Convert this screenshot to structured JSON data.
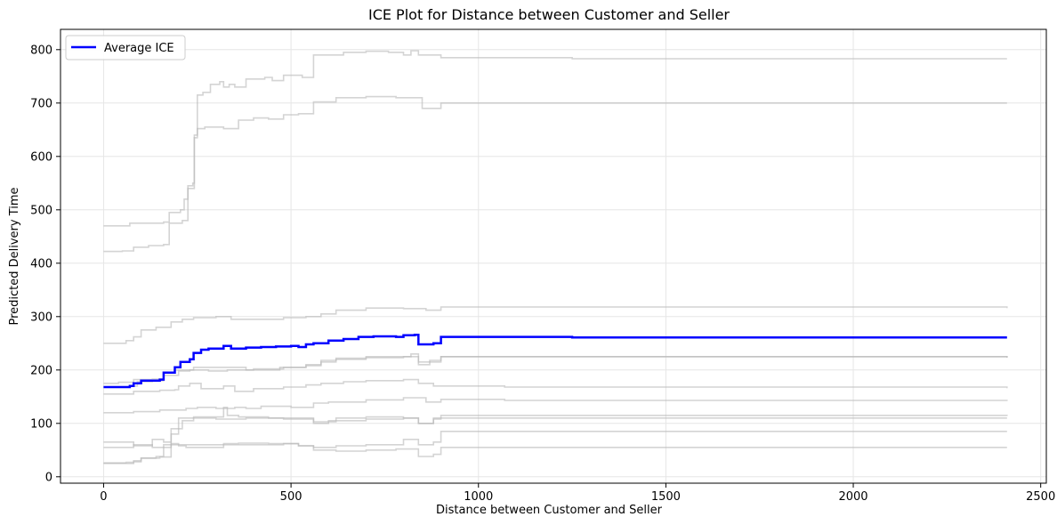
{
  "chart_data": {
    "type": "line",
    "title": "ICE Plot for Distance between Customer and Seller",
    "xlabel": "Distance between Customer and Seller",
    "ylabel": "Predicted Delivery Time",
    "xlim": [
      -115,
      2515
    ],
    "ylim": [
      -12,
      838
    ],
    "xticks": [
      0,
      500,
      1000,
      1500,
      2000,
      2500
    ],
    "yticks": [
      0,
      100,
      200,
      300,
      400,
      500,
      600,
      700,
      800
    ],
    "grid": true,
    "legend": {
      "placement": "top-left",
      "entries": [
        "Average ICE"
      ]
    },
    "colors": {
      "ice": "#b8b8b8",
      "average": "#0000ff"
    },
    "ice_lines": [
      {
        "points": [
          [
            0,
            470
          ],
          [
            40,
            470
          ],
          [
            70,
            475
          ],
          [
            160,
            477
          ],
          [
            175,
            495
          ],
          [
            205,
            500
          ],
          [
            215,
            520
          ],
          [
            225,
            545
          ],
          [
            238,
            550
          ],
          [
            242,
            635
          ],
          [
            250,
            715
          ],
          [
            265,
            720
          ],
          [
            285,
            735
          ],
          [
            310,
            740
          ],
          [
            320,
            730
          ],
          [
            335,
            735
          ],
          [
            350,
            730
          ],
          [
            380,
            745
          ],
          [
            430,
            748
          ],
          [
            450,
            742
          ],
          [
            480,
            752
          ],
          [
            530,
            748
          ],
          [
            560,
            790
          ],
          [
            610,
            790
          ],
          [
            640,
            795
          ],
          [
            700,
            797
          ],
          [
            760,
            795
          ],
          [
            800,
            790
          ],
          [
            820,
            798
          ],
          [
            840,
            790
          ],
          [
            900,
            785
          ],
          [
            1070,
            785
          ],
          [
            1250,
            783
          ],
          [
            2410,
            783
          ]
        ]
      },
      {
        "points": [
          [
            0,
            422
          ],
          [
            50,
            423
          ],
          [
            80,
            430
          ],
          [
            120,
            433
          ],
          [
            160,
            435
          ],
          [
            175,
            475
          ],
          [
            210,
            480
          ],
          [
            225,
            540
          ],
          [
            242,
            640
          ],
          [
            250,
            652
          ],
          [
            270,
            655
          ],
          [
            320,
            652
          ],
          [
            360,
            668
          ],
          [
            400,
            672
          ],
          [
            440,
            670
          ],
          [
            480,
            678
          ],
          [
            520,
            680
          ],
          [
            560,
            702
          ],
          [
            620,
            710
          ],
          [
            700,
            712
          ],
          [
            780,
            710
          ],
          [
            820,
            710
          ],
          [
            850,
            690
          ],
          [
            900,
            700
          ],
          [
            1070,
            700
          ],
          [
            2410,
            700
          ]
        ]
      },
      {
        "points": [
          [
            0,
            250
          ],
          [
            60,
            255
          ],
          [
            80,
            262
          ],
          [
            100,
            275
          ],
          [
            140,
            280
          ],
          [
            180,
            290
          ],
          [
            210,
            295
          ],
          [
            240,
            298
          ],
          [
            290,
            298
          ],
          [
            300,
            300
          ],
          [
            340,
            295
          ],
          [
            440,
            295
          ],
          [
            480,
            298
          ],
          [
            540,
            300
          ],
          [
            580,
            305
          ],
          [
            620,
            312
          ],
          [
            700,
            316
          ],
          [
            800,
            315
          ],
          [
            860,
            312
          ],
          [
            900,
            318
          ],
          [
            1070,
            318
          ],
          [
            2410,
            316
          ]
        ]
      },
      {
        "points": [
          [
            0,
            168
          ],
          [
            40,
            168
          ],
          [
            70,
            170
          ],
          [
            90,
            178
          ],
          [
            130,
            180
          ],
          [
            160,
            195
          ],
          [
            190,
            200
          ],
          [
            240,
            205
          ],
          [
            320,
            205
          ],
          [
            380,
            200
          ],
          [
            470,
            205
          ],
          [
            540,
            210
          ],
          [
            580,
            215
          ],
          [
            620,
            220
          ],
          [
            700,
            223
          ],
          [
            800,
            225
          ],
          [
            820,
            230
          ],
          [
            840,
            210
          ],
          [
            870,
            215
          ],
          [
            900,
            225
          ],
          [
            1070,
            225
          ],
          [
            2410,
            223
          ]
        ]
      },
      {
        "points": [
          [
            0,
            175
          ],
          [
            40,
            177
          ],
          [
            80,
            182
          ],
          [
            130,
            183
          ],
          [
            160,
            190
          ],
          [
            200,
            198
          ],
          [
            230,
            200
          ],
          [
            280,
            198
          ],
          [
            330,
            200
          ],
          [
            400,
            202
          ],
          [
            480,
            205
          ],
          [
            540,
            208
          ],
          [
            580,
            218
          ],
          [
            620,
            222
          ],
          [
            700,
            225
          ],
          [
            800,
            225
          ],
          [
            820,
            225
          ],
          [
            840,
            215
          ],
          [
            870,
            218
          ],
          [
            900,
            225
          ],
          [
            2410,
            223
          ]
        ]
      },
      {
        "points": [
          [
            0,
            155
          ],
          [
            60,
            155
          ],
          [
            80,
            160
          ],
          [
            150,
            162
          ],
          [
            190,
            163
          ],
          [
            200,
            170
          ],
          [
            230,
            175
          ],
          [
            260,
            165
          ],
          [
            320,
            170
          ],
          [
            350,
            160
          ],
          [
            400,
            165
          ],
          [
            480,
            168
          ],
          [
            540,
            172
          ],
          [
            580,
            175
          ],
          [
            640,
            178
          ],
          [
            700,
            180
          ],
          [
            800,
            182
          ],
          [
            840,
            175
          ],
          [
            880,
            170
          ],
          [
            1070,
            168
          ],
          [
            2410,
            166
          ]
        ]
      },
      {
        "points": [
          [
            0,
            120
          ],
          [
            60,
            120
          ],
          [
            80,
            122
          ],
          [
            150,
            125
          ],
          [
            170,
            125
          ],
          [
            220,
            128
          ],
          [
            250,
            130
          ],
          [
            300,
            128
          ],
          [
            350,
            130
          ],
          [
            380,
            128
          ],
          [
            420,
            132
          ],
          [
            500,
            130
          ],
          [
            560,
            138
          ],
          [
            600,
            140
          ],
          [
            700,
            144
          ],
          [
            800,
            148
          ],
          [
            860,
            140
          ],
          [
            900,
            145
          ],
          [
            1070,
            143
          ],
          [
            2410,
            142
          ]
        ]
      },
      {
        "points": [
          [
            0,
            26
          ],
          [
            60,
            27
          ],
          [
            80,
            28
          ],
          [
            100,
            35
          ],
          [
            140,
            38
          ],
          [
            160,
            55
          ],
          [
            180,
            80
          ],
          [
            200,
            110
          ],
          [
            240,
            112
          ],
          [
            300,
            112
          ],
          [
            320,
            130
          ],
          [
            330,
            115
          ],
          [
            360,
            112
          ],
          [
            440,
            110
          ],
          [
            560,
            100
          ],
          [
            600,
            105
          ],
          [
            700,
            108
          ],
          [
            800,
            110
          ],
          [
            840,
            100
          ],
          [
            880,
            108
          ],
          [
            900,
            115
          ],
          [
            1070,
            115
          ],
          [
            2410,
            114
          ]
        ]
      },
      {
        "points": [
          [
            0,
            65
          ],
          [
            50,
            65
          ],
          [
            80,
            58
          ],
          [
            130,
            70
          ],
          [
            160,
            65
          ],
          [
            180,
            90
          ],
          [
            210,
            105
          ],
          [
            240,
            110
          ],
          [
            300,
            108
          ],
          [
            380,
            110
          ],
          [
            480,
            108
          ],
          [
            560,
            103
          ],
          [
            620,
            110
          ],
          [
            700,
            112
          ],
          [
            800,
            110
          ],
          [
            840,
            100
          ],
          [
            880,
            110
          ],
          [
            900,
            110
          ],
          [
            2410,
            110
          ]
        ]
      },
      {
        "points": [
          [
            0,
            25
          ],
          [
            50,
            25
          ],
          [
            80,
            30
          ],
          [
            100,
            35
          ],
          [
            150,
            37
          ],
          [
            180,
            60
          ],
          [
            240,
            60
          ],
          [
            320,
            62
          ],
          [
            360,
            63
          ],
          [
            440,
            62
          ],
          [
            480,
            62
          ],
          [
            520,
            58
          ],
          [
            560,
            55
          ],
          [
            620,
            58
          ],
          [
            700,
            60
          ],
          [
            800,
            70
          ],
          [
            840,
            60
          ],
          [
            880,
            65
          ],
          [
            900,
            85
          ],
          [
            1070,
            85
          ],
          [
            2410,
            85
          ]
        ]
      },
      {
        "points": [
          [
            0,
            55
          ],
          [
            50,
            55
          ],
          [
            80,
            60
          ],
          [
            130,
            55
          ],
          [
            160,
            60
          ],
          [
            180,
            62
          ],
          [
            200,
            58
          ],
          [
            220,
            55
          ],
          [
            320,
            60
          ],
          [
            440,
            60
          ],
          [
            480,
            62
          ],
          [
            520,
            58
          ],
          [
            560,
            50
          ],
          [
            620,
            48
          ],
          [
            700,
            50
          ],
          [
            780,
            52
          ],
          [
            820,
            52
          ],
          [
            840,
            38
          ],
          [
            880,
            42
          ],
          [
            900,
            55
          ],
          [
            1070,
            55
          ],
          [
            2410,
            55
          ]
        ]
      }
    ],
    "average": {
      "name": "Average ICE",
      "points": [
        [
          0,
          168
        ],
        [
          70,
          170
        ],
        [
          80,
          175
        ],
        [
          100,
          180
        ],
        [
          150,
          182
        ],
        [
          160,
          195
        ],
        [
          190,
          205
        ],
        [
          205,
          215
        ],
        [
          230,
          220
        ],
        [
          240,
          232
        ],
        [
          260,
          238
        ],
        [
          280,
          240
        ],
        [
          320,
          245
        ],
        [
          340,
          240
        ],
        [
          380,
          242
        ],
        [
          420,
          243
        ],
        [
          460,
          244
        ],
        [
          500,
          245
        ],
        [
          520,
          243
        ],
        [
          540,
          248
        ],
        [
          560,
          250
        ],
        [
          600,
          255
        ],
        [
          640,
          258
        ],
        [
          680,
          262
        ],
        [
          720,
          263
        ],
        [
          780,
          262
        ],
        [
          800,
          265
        ],
        [
          830,
          266
        ],
        [
          840,
          248
        ],
        [
          880,
          250
        ],
        [
          900,
          262
        ],
        [
          1070,
          262
        ],
        [
          1250,
          261
        ],
        [
          2410,
          261
        ]
      ]
    }
  }
}
